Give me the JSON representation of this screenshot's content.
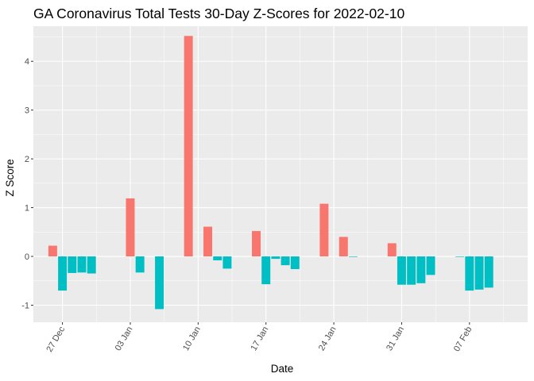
{
  "chart_data": {
    "type": "bar",
    "title": "GA Coronavirus Total Tests 30-Day Z-Scores for 2022-02-10",
    "xlabel": "Date",
    "ylabel": "Z Score",
    "ylim": [
      -1.35,
      4.72
    ],
    "yticks": [
      -1,
      0,
      1,
      2,
      3,
      4
    ],
    "xlim": [
      "2021-12-24",
      "2022-02-13"
    ],
    "xticks": [
      {
        "date": "2021-12-27",
        "label": "27 Dec"
      },
      {
        "date": "2022-01-03",
        "label": "03 Jan"
      },
      {
        "date": "2022-01-10",
        "label": "10 Jan"
      },
      {
        "date": "2022-01-17",
        "label": "17 Jan"
      },
      {
        "date": "2022-01-24",
        "label": "24 Jan"
      },
      {
        "date": "2022-01-31",
        "label": "31 Jan"
      },
      {
        "date": "2022-02-07",
        "label": "07 Feb"
      }
    ],
    "grid": true,
    "legend": "none",
    "colors": {
      "positive": "#F8766D",
      "negative": "#00BFC4",
      "panel": "#EBEBEB",
      "grid": "#FFFFFF"
    },
    "series": [
      {
        "x": [
          "2021-12-26",
          "2021-12-27",
          "2021-12-28",
          "2021-12-29",
          "2021-12-30",
          "2022-01-03",
          "2022-01-04",
          "2022-01-06",
          "2022-01-09",
          "2022-01-11",
          "2022-01-12",
          "2022-01-13",
          "2022-01-16",
          "2022-01-17",
          "2022-01-18",
          "2022-01-19",
          "2022-01-20",
          "2022-01-23",
          "2022-01-25",
          "2022-01-26",
          "2022-01-30",
          "2022-01-31",
          "2022-02-01",
          "2022-02-02",
          "2022-02-03",
          "2022-02-06",
          "2022-02-07",
          "2022-02-08",
          "2022-02-09"
        ],
        "values": [
          0.22,
          -0.7,
          -0.34,
          -0.33,
          -0.35,
          1.19,
          -0.33,
          -1.08,
          4.52,
          0.61,
          -0.08,
          -0.25,
          0.52,
          -0.57,
          -0.05,
          -0.18,
          -0.26,
          1.08,
          0.4,
          -0.01,
          0.27,
          -0.58,
          -0.58,
          -0.55,
          -0.38,
          -0.01,
          -0.7,
          -0.68,
          -0.64
        ]
      }
    ]
  }
}
